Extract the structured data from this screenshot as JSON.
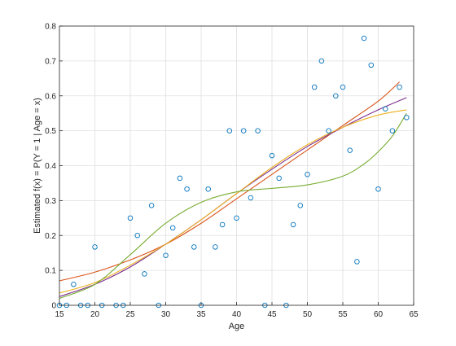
{
  "chart_data": {
    "type": "scatter",
    "xlabel": "Age",
    "ylabel": "Estimated f(x) = P(Y = 1 | Age = x)",
    "xlim": [
      15,
      65
    ],
    "ylim": [
      0,
      0.8
    ],
    "xticks": [
      15,
      20,
      25,
      30,
      35,
      40,
      45,
      50,
      55,
      60,
      65
    ],
    "yticks": [
      0,
      0.1,
      0.2,
      0.3,
      0.4,
      0.5,
      0.6,
      0.7,
      0.8
    ],
    "grid": true,
    "points": {
      "color": "#0072BD",
      "x": [
        15,
        16,
        17,
        18,
        19,
        20,
        21,
        23,
        24,
        25,
        26,
        27,
        28,
        29,
        30,
        31,
        32,
        33,
        34,
        35,
        36,
        37,
        38,
        39,
        40,
        41,
        42,
        43,
        44,
        45,
        46,
        47,
        48,
        49,
        50,
        51,
        52,
        53,
        54,
        55,
        56,
        57,
        58,
        59,
        60,
        61,
        62,
        63,
        64
      ],
      "y": [
        0,
        0,
        0.06,
        0,
        0,
        0.167,
        0,
        0,
        0,
        0.25,
        0.2,
        0.09,
        0.286,
        0,
        0.143,
        0.222,
        0.364,
        0.333,
        0.167,
        0,
        0.333,
        0.167,
        0.231,
        0.5,
        0.25,
        0.5,
        0.308,
        0.5,
        0,
        0.429,
        0.364,
        0,
        0.231,
        0.286,
        0.375,
        0.625,
        0.7,
        0.5,
        0.6,
        0.625,
        0.444,
        0.125,
        0.765,
        0.688,
        0.333,
        0.563,
        0.5,
        0.625,
        0.538
      ]
    },
    "series": [
      {
        "color": "#D95319",
        "x": [
          15,
          20,
          25,
          30,
          35,
          40,
          45,
          50,
          55,
          60,
          63
        ],
        "y": [
          0.07,
          0.095,
          0.13,
          0.175,
          0.235,
          0.305,
          0.375,
          0.445,
          0.515,
          0.585,
          0.64
        ]
      },
      {
        "color": "#7E2F8E",
        "x": [
          15,
          20,
          25,
          30,
          35,
          40,
          45,
          50,
          55,
          60,
          64
        ],
        "y": [
          0.025,
          0.06,
          0.11,
          0.175,
          0.245,
          0.32,
          0.39,
          0.455,
          0.51,
          0.56,
          0.595
        ]
      },
      {
        "color": "#EDB120",
        "x": [
          15,
          20,
          25,
          30,
          35,
          40,
          45,
          50,
          55,
          60,
          64
        ],
        "y": [
          0.035,
          0.065,
          0.115,
          0.175,
          0.245,
          0.32,
          0.395,
          0.46,
          0.51,
          0.545,
          0.56
        ]
      },
      {
        "color": "#77AC30",
        "x": [
          15,
          20,
          25,
          30,
          35,
          40,
          45,
          50,
          55,
          58,
          60,
          62,
          64
        ],
        "y": [
          0.02,
          0.06,
          0.145,
          0.235,
          0.295,
          0.325,
          0.335,
          0.345,
          0.37,
          0.405,
          0.44,
          0.485,
          0.55
        ]
      }
    ]
  }
}
